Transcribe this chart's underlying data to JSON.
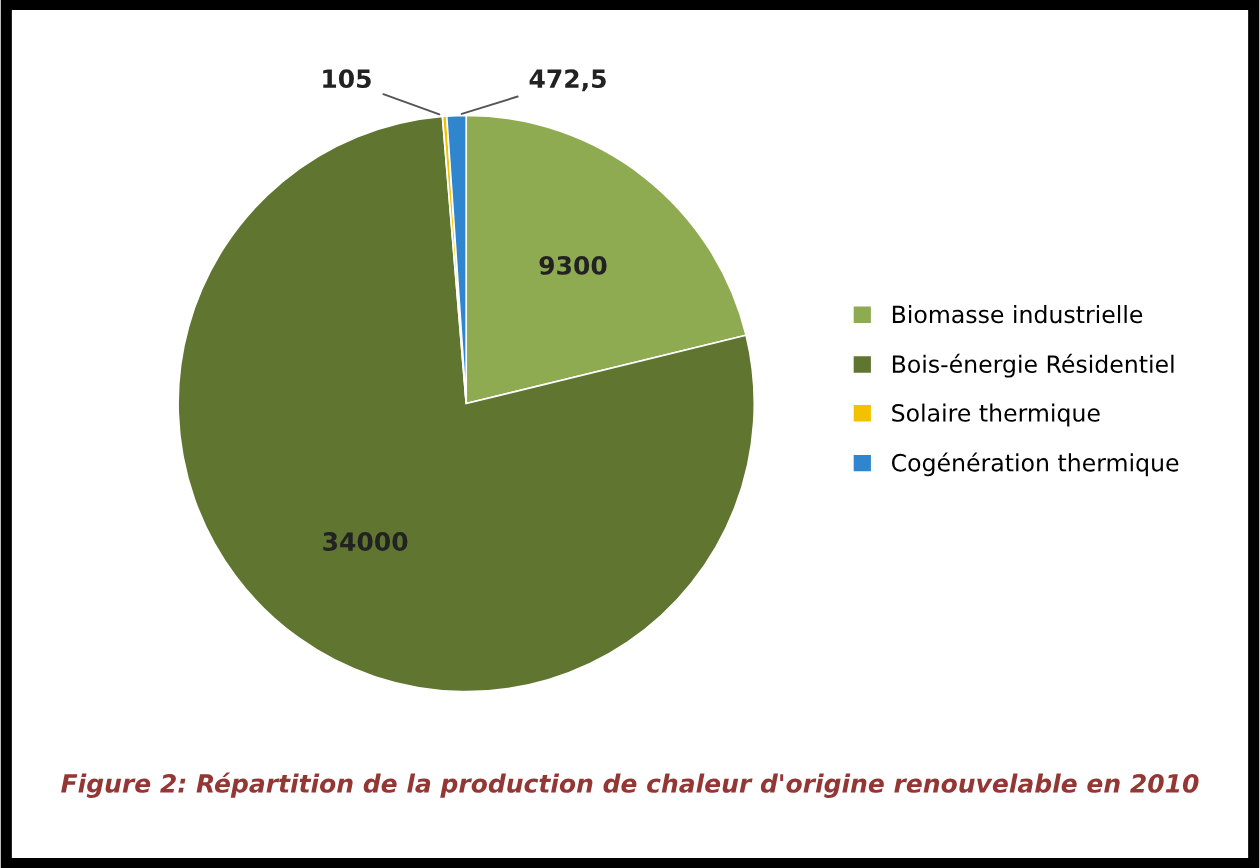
{
  "chart_data": {
    "type": "pie",
    "categories": [
      "Biomasse industrielle",
      "Bois-énergie Résidentiel",
      "Solaire thermique",
      "Cogénération thermique"
    ],
    "values": [
      9300,
      34000,
      105,
      472.5
    ],
    "colors": [
      "#8fab52",
      "#5f7530",
      "#f2c200",
      "#2f86cf"
    ],
    "value_labels": [
      "9300",
      "34000",
      "105",
      "472,5"
    ],
    "legend": "right",
    "annotations": [
      "Figure 2: Répartition de la production de chaleur d'origine renouvelable en 2010"
    ]
  }
}
